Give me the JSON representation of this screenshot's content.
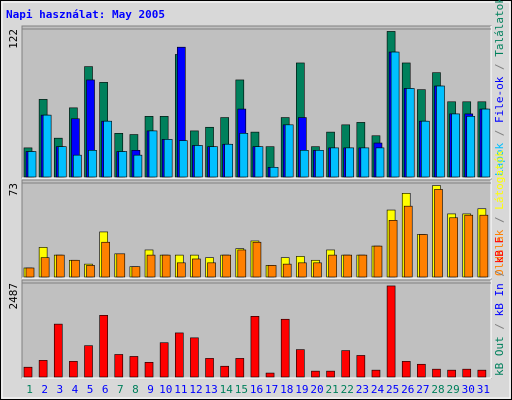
{
  "chart_data": [
    {
      "type": "bar",
      "title": "Napi használat: May 2005",
      "series": [
        {
          "name": "Találatok",
          "color": "#00805c",
          "values": [
            24,
            64,
            32,
            57,
            91,
            78,
            36,
            35,
            50,
            50,
            101,
            38,
            41,
            49,
            80,
            37,
            25,
            49,
            94,
            25,
            37,
            43,
            45,
            34,
            120,
            94,
            72,
            86,
            62,
            62,
            62
          ]
        },
        {
          "name": "File-ok",
          "color": "#0000ff",
          "values": [
            21,
            51,
            25,
            48,
            80,
            46,
            21,
            22,
            38,
            31,
            107,
            26,
            25,
            27,
            56,
            25,
            8,
            43,
            49,
            22,
            24,
            24,
            24,
            28,
            103,
            73,
            46,
            75,
            52,
            52,
            56
          ]
        },
        {
          "name": "Lapok",
          "color": "#00c0ff",
          "values": [
            21,
            51,
            25,
            18,
            22,
            46,
            21,
            18,
            38,
            31,
            30,
            26,
            25,
            27,
            36,
            25,
            8,
            43,
            22,
            22,
            24,
            24,
            24,
            24,
            103,
            73,
            46,
            75,
            52,
            50,
            56
          ]
        }
      ],
      "ylim": [
        0,
        122
      ],
      "yticks": [
        122
      ]
    },
    {
      "type": "bar",
      "series": [
        {
          "name": "Látogatók",
          "color": "#ffff00",
          "values": [
            7,
            23,
            17,
            13,
            10,
            35,
            18,
            8,
            21,
            17,
            17,
            17,
            15,
            17,
            22,
            28,
            9,
            15,
            16,
            13,
            21,
            17,
            17,
            24,
            52,
            65,
            33,
            71,
            49,
            49,
            53
          ]
        },
        {
          "name": "Oldalak",
          "color": "#ff8000",
          "values": [
            7,
            15,
            17,
            13,
            9,
            27,
            18,
            8,
            17,
            17,
            11,
            14,
            11,
            17,
            21,
            27,
            9,
            10,
            11,
            11,
            17,
            17,
            17,
            24,
            44,
            55,
            33,
            68,
            46,
            48,
            48
          ]
        }
      ],
      "ylim": [
        0,
        73
      ],
      "yticks": [
        73
      ]
    },
    {
      "type": "bar",
      "categories": [
        "1",
        "2",
        "3",
        "4",
        "5",
        "6",
        "7",
        "8",
        "9",
        "10",
        "11",
        "12",
        "13",
        "14",
        "15",
        "16",
        "17",
        "18",
        "19",
        "20",
        "21",
        "22",
        "23",
        "24",
        "25",
        "26",
        "27",
        "28",
        "29",
        "30",
        "31"
      ],
      "category_colors": [
        "#00805c",
        "#0000ff",
        "#0000ff",
        "#0000ff",
        "#0000ff",
        "#0000ff",
        "#00805c",
        "#00805c",
        "#0000ff",
        "#0000ff",
        "#0000ff",
        "#0000ff",
        "#0000ff",
        "#00805c",
        "#00805c",
        "#0000ff",
        "#0000ff",
        "#0000ff",
        "#0000ff",
        "#0000ff",
        "#00805c",
        "#00805c",
        "#0000ff",
        "#0000ff",
        "#0000ff",
        "#0000ff",
        "#0000ff",
        "#00805c",
        "#00805c",
        "#0000ff",
        "#0000ff"
      ],
      "series": [
        {
          "name": "kB F",
          "color": "#ff0000",
          "values": [
            259,
            440,
            1399,
            414,
            829,
            1632,
            596,
            544,
            389,
            907,
            1166,
            1036,
            492,
            285,
            492,
            1606,
            104,
            1528,
            725,
            155,
            155,
            699,
            570,
            181,
            2409,
            414,
            337,
            207,
            181,
            207,
            181
          ]
        }
      ],
      "extra_labels": [
        {
          "text": "kB In",
          "color": "#0000ff"
        },
        {
          "text": "kB Out",
          "color": "#00805c"
        }
      ],
      "ylim": [
        0,
        2487
      ],
      "yticks": [
        2487
      ]
    }
  ]
}
